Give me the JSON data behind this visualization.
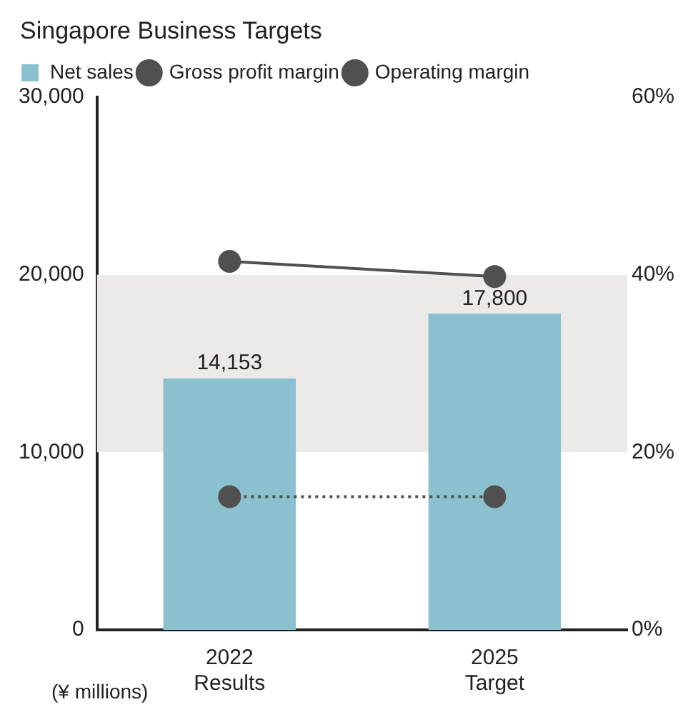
{
  "chart_data": {
    "type": "bar",
    "title": "Singapore Business Targets",
    "categories": [
      "2022\nResults",
      "2025\nTarget"
    ],
    "series": [
      {
        "name": "Net sales",
        "color": "#8bc1cf",
        "values": [
          14153,
          17800
        ],
        "value_labels": [
          "14,153",
          "17,800"
        ]
      },
      {
        "name": "Gross profit margin",
        "type": "line",
        "axis": "y2",
        "color": "#505050",
        "values": [
          41.5,
          39.8
        ],
        "marker": "circle",
        "line_style": "solid"
      },
      {
        "name": "Operating margin",
        "type": "line",
        "axis": "y2",
        "color": "#505050",
        "values": [
          15,
          15
        ],
        "marker": "circle",
        "line_style": "dotted"
      }
    ],
    "ylim": [
      0,
      30000
    ],
    "yticks": [
      {
        "value": 0,
        "label": "0"
      },
      {
        "value": 10000,
        "label": "10,000"
      },
      {
        "value": 20000,
        "label": "20,000"
      },
      {
        "value": 30000,
        "label": "30,000"
      }
    ],
    "y2lim": [
      0,
      60
    ],
    "y2ticks": [
      {
        "value": 0,
        "label": "0%"
      },
      {
        "value": 20,
        "label": "20%"
      },
      {
        "value": 40,
        "label": "40%"
      },
      {
        "value": 60,
        "label": "60%"
      }
    ],
    "bands": [
      {
        "axis": "y",
        "from": 10000,
        "to": 20000,
        "color": "#ebeae8"
      }
    ],
    "annotations": [
      "(¥ millions)"
    ],
    "grid": false,
    "legend": "top"
  }
}
